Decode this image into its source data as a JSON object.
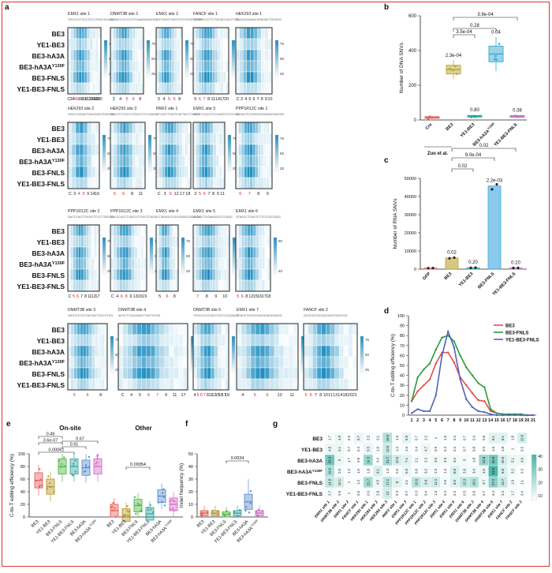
{
  "colors": {
    "heat_low": "#ffffff",
    "heat_high": "#1f8fc2",
    "frame": "#e1322e",
    "g_low": "#ffffff",
    "g_high": "#46b5a8"
  },
  "panel_labels": {
    "a": "a",
    "b": "b",
    "c": "c",
    "d": "d",
    "e": "e",
    "f": "f",
    "g": "g"
  },
  "row_labels": [
    "BE3",
    "YE1-BE3",
    "BE3-hA3A",
    "BE3-hA3A",
    "BE3-FNLS",
    "YE1-BE3-FNLS"
  ],
  "row_label_sup": "Y130F",
  "heatmaps": [
    {
      "title": "EMX1 site 1",
      "seq": "TGCCCCTCCCTCCCTGGCCCAGG",
      "ticks": [
        "C",
        "3",
        "4",
        "5",
        "6",
        "8",
        "9",
        "10",
        "11",
        "12",
        "13",
        "14",
        "18",
        "19",
        "20"
      ],
      "red": [
        "5",
        "6"
      ],
      "scale": [
        "75",
        "50",
        "25"
      ]
    },
    {
      "title": "DNMT3B site 2",
      "seq": "AGAGCCCCCCCTCAAAGAGAGGG",
      "ticks": [
        "3",
        "4",
        "5",
        "6",
        "8"
      ],
      "red": [
        "5",
        "6"
      ],
      "scale": [
        "75",
        "50",
        "25"
      ]
    },
    {
      "title": "EMX1 site 2",
      "seq": "GGTGAGTGAGTGTGTGCGTGTGG",
      "ticks": [
        "3",
        "4",
        "5",
        "6",
        "8"
      ],
      "red": [
        "5",
        "6"
      ],
      "scale": [
        "75",
        "50",
        "25"
      ]
    },
    {
      "title": "FANCF site 1",
      "seq": "GGAATCCCTTCTGCAGCACCTGG",
      "ticks": [
        "5",
        "6",
        "7",
        "8",
        "11",
        "14",
        "17",
        "20"
      ],
      "red": [
        "6",
        "7"
      ],
      "scale": [
        "75",
        "50",
        "25"
      ]
    },
    {
      "title": "HEK293 site 1",
      "seq": "GAACACAAAGCATAGACTGCGGG",
      "ticks": [
        "C",
        "2",
        "4",
        "5",
        "6",
        "7",
        "8",
        "9",
        "10"
      ],
      "red": [],
      "scale": [
        "75",
        "50",
        "25"
      ]
    },
    {
      "title": "HEK293 site 2",
      "seq": "GGCCCAGACTGAGCACGTGATGG",
      "ticks": [
        "C",
        "3",
        "4",
        "5",
        "9",
        "14",
        "16"
      ],
      "red": [
        "4",
        "5"
      ],
      "scale": [
        "75",
        "50",
        "25"
      ]
    },
    {
      "title": "HEK293 site 3",
      "seq": "GGCCTCTGCCCTGGCCTCCGAGG",
      "ticks": [
        "5",
        "6",
        "8",
        "11"
      ],
      "red": [
        "5",
        "6"
      ],
      "scale": [
        "75",
        "50",
        "25"
      ]
    },
    {
      "title": "RNF2 site 1",
      "seq": "GTCATCTTAGTCATTACCTGAGG",
      "ticks": [
        "C",
        "3",
        "6",
        "12",
        "17",
        "18"
      ],
      "red": [
        "6"
      ],
      "scale": [
        "75",
        "50",
        "25"
      ]
    },
    {
      "title": "EMX1 site 3",
      "seq": "GTCCTCACCTCCCAGCCCTCCGG",
      "ticks": [
        "3",
        "5",
        "6",
        "7",
        "8",
        "9",
        "11"
      ],
      "red": [
        "5",
        "6"
      ],
      "scale": [
        "75",
        "50",
        "25"
      ]
    },
    {
      "title": "PPP1R12C site 1",
      "seq": "GGCACTCGGGGGCGAGAGGAGGG",
      "ticks": [
        "6",
        "7",
        "8",
        "9"
      ],
      "red": [
        "6",
        "7"
      ],
      "scale": [
        "75",
        "50",
        "25"
      ]
    },
    {
      "title": "PPP1R12C site 2",
      "seq": "GACTCACCTGGCCTCCCTTAGGG",
      "ticks": [
        "C",
        "5",
        "6",
        "7",
        "8",
        "11",
        "12",
        "17"
      ],
      "red": [
        "5",
        "6"
      ],
      "scale": [
        "75",
        "50",
        "25"
      ]
    },
    {
      "title": "PPP1R12C site 3",
      "seq": "GACCCACCTGACCCTGCCTCAGG",
      "ticks": [
        "C",
        "4",
        "6",
        "8",
        "9",
        "13",
        "15",
        "19"
      ],
      "red": [
        "6",
        "8"
      ],
      "scale": [
        "75",
        "50",
        "25"
      ]
    },
    {
      "title": "EMX1 site 4",
      "seq": "CCTAGACCCGGGGAGCAGCTGG",
      "ticks": [
        "5",
        "6",
        "8"
      ],
      "red": [
        "6"
      ],
      "scale": [
        "75",
        "50",
        "25"
      ]
    },
    {
      "title": "EMX1 site 5",
      "seq": "ACGCCTGGAAGGGCCCAGG",
      "ticks": [
        "7",
        "8",
        "9",
        "10"
      ],
      "red": [
        "7"
      ],
      "scale": [
        "80",
        "40"
      ]
    },
    {
      "title": "EMX1 site 6",
      "seq": "GTAGCCTCAGTCTTCCCATCAGG",
      "ticks": [
        "5",
        "6",
        "8",
        "12",
        "15",
        "16",
        "17",
        "18"
      ],
      "red": [
        "5",
        "6"
      ],
      "scale": [
        "80",
        "40"
      ]
    },
    {
      "title": "DNMT3B site 3",
      "seq": "GAGTCCTCCTACTACTGCCCTGG",
      "ticks": [
        "5",
        "6",
        "8"
      ],
      "red": [
        "5",
        "6"
      ],
      "scale": [
        "75",
        "50",
        "25"
      ]
    },
    {
      "title": "DNMT3B site 4",
      "seq": "AGTCTCCACAGGCTGCTGTGG",
      "ticks": [
        "C",
        "4",
        "5",
        "6",
        "7",
        "9",
        "11",
        "17"
      ],
      "red": [
        "6",
        "7"
      ],
      "scale": [
        "75",
        "50",
        "25"
      ]
    },
    {
      "title": "DNMT3B site 5",
      "seq": "TGTCCCCCCATCTGCCCCAGAGG",
      "ticks": [
        "4",
        "5",
        "6",
        "7",
        "8",
        "11",
        "12",
        "15",
        "16",
        "17",
        "18"
      ],
      "red": [
        "5",
        "6",
        "7"
      ],
      "scale": [
        "75",
        "50",
        "25"
      ]
    },
    {
      "title": "EMX1 site 7",
      "seq": "TCACCTGGGCCAGGGAGGGAGG",
      "ticks": [
        "4",
        "5",
        "6",
        "10",
        "11"
      ],
      "red": [
        "5",
        "6"
      ],
      "scale": [
        "75",
        "50",
        "25"
      ]
    },
    {
      "title": "FANCF site 2",
      "seq": "GCGCCCGCCACCGGTGGCCGG",
      "ticks": [
        "5",
        "6",
        "7",
        "8",
        "10",
        "11",
        "13",
        "14",
        "18",
        "20",
        "21"
      ],
      "red": [
        "5",
        "6"
      ],
      "scale": [
        "75",
        "50",
        "25"
      ]
    },
    {
      "title": "FANCF site 3",
      "seq": "CGCCCTCCCAAGGTGAAAGCGG",
      "ticks": [
        "C",
        "3",
        "4",
        "7",
        "9",
        "10",
        "11",
        "12",
        "13"
      ],
      "red": [
        "7"
      ],
      "scale": [
        "75",
        "50",
        "25"
      ]
    }
  ],
  "chart_data": [
    {
      "panel": "b",
      "type": "box",
      "title": "",
      "xlabel": "",
      "ylabel": "Number of DNA SNVs",
      "categories": [
        "Cre",
        "BE3",
        "YE1-BE3",
        "BE3-hA3A",
        "YE1-BE3-FNLS"
      ],
      "medians": [
        15,
        290,
        22,
        380,
        22
      ],
      "ylim": [
        0,
        600
      ],
      "yticks": [
        0,
        200,
        400,
        600
      ],
      "annotations": [
        "2.3e-04",
        "0.80",
        "0.04",
        "0.38"
      ],
      "brackets": [
        "3.5e-04",
        "0.28",
        "3.9e-04"
      ],
      "footnote": "Zuo et al.",
      "sup": "Y130F"
    },
    {
      "panel": "c",
      "type": "bar",
      "ylabel": "Number of RNA SNVs",
      "categories": [
        "GFP",
        "BE3",
        "YE1-BE3",
        "BE3-FNLS",
        "YE1-BE3-FNLS"
      ],
      "values": [
        600,
        6200,
        800,
        45800,
        700
      ],
      "ylim": [
        0,
        50000
      ],
      "yticks": [
        0,
        10000,
        20000,
        30000,
        40000,
        50000
      ],
      "annotations": [
        "0.02",
        "0.20",
        "2.2e-03",
        "0.10"
      ],
      "brackets": [
        "0.02",
        "9.0e-04",
        "0.02"
      ]
    },
    {
      "panel": "d",
      "type": "line",
      "ylabel": "C-to-T editing efficiency (%)",
      "xlabel": "",
      "x": [
        1,
        2,
        3,
        4,
        5,
        6,
        7,
        8,
        9,
        10,
        11,
        12,
        13,
        14,
        15,
        16,
        17,
        18,
        19,
        20,
        21
      ],
      "ylim": [
        0,
        100
      ],
      "yticks": [
        0,
        10,
        20,
        30,
        40,
        50,
        60,
        70,
        80,
        90,
        100
      ],
      "series": [
        {
          "name": "BE3",
          "color": "#e44b4b",
          "values": [
            14,
            24,
            30,
            36,
            52,
            63,
            63,
            53,
            38,
            30,
            22,
            15,
            14,
            4,
            2,
            1,
            1,
            1,
            0,
            0,
            0
          ]
        },
        {
          "name": "BE3-FNLS",
          "color": "#2d9a3c",
          "values": [
            14,
            38,
            46,
            52,
            66,
            78,
            80,
            74,
            60,
            48,
            40,
            32,
            28,
            6,
            2,
            1,
            1,
            1,
            1,
            0,
            0
          ]
        },
        {
          "name": "YE1-BE3-FNLS",
          "color": "#4f63b8",
          "values": [
            2,
            6,
            4,
            4,
            20,
            60,
            84,
            68,
            36,
            16,
            8,
            4,
            3,
            1,
            0,
            0,
            0,
            0,
            0,
            0,
            0
          ]
        }
      ]
    },
    {
      "panel": "e",
      "type": "box",
      "ylabel": "C-to-T editing efficiency (%)",
      "groups": [
        "On-site",
        "Other"
      ],
      "categories": [
        "BE3",
        "YE1-BE3",
        "BE3-FNLS",
        "YE1-BE3-FNLS",
        "BE3-hA3A",
        "BE3-hA3A"
      ],
      "onsite_medians": [
        58,
        48,
        80,
        80,
        78,
        80
      ],
      "other_medians": [
        10,
        3,
        18,
        5,
        33,
        20
      ],
      "ylim": [
        0,
        100
      ],
      "yticks": [
        0,
        20,
        40,
        60,
        80,
        100
      ],
      "brackets": [
        "0.49",
        "3.6e-07",
        "0.67",
        "0.91",
        "0.00061",
        "0.00054"
      ],
      "colors": [
        "#e7625d",
        "#b79a30",
        "#52b847",
        "#3aa9a3",
        "#5d8fd0",
        "#d36fc4"
      ],
      "sup": "Y130F"
    },
    {
      "panel": "f",
      "type": "box",
      "ylabel": "Indel frequency (%)",
      "categories": [
        "BE3",
        "YE1-BE3",
        "BE3-FNLS",
        "YE1-BE3-FNLS",
        "BE3-hA3A",
        "BE3-hA3A"
      ],
      "medians": [
        3,
        3,
        2,
        3,
        12,
        3
      ],
      "ylim": [
        0,
        50
      ],
      "yticks": [
        0,
        10,
        20,
        30,
        40,
        50
      ],
      "brackets": [
        "0.0034"
      ],
      "sup": "Y130F"
    },
    {
      "panel": "g",
      "type": "heatmap",
      "rows": [
        "BE3",
        "YE1-BE3",
        "BE3-hA3A",
        "BE3-hA3A",
        "BE3-FNLS",
        "YE1-BE3-FNLS"
      ],
      "columns": [
        "EMX1 site 1",
        "DNMT3B site 2",
        "EMX1 site 2",
        "FANCF site 1",
        "HEK293 site 1",
        "HEK293 site 2",
        "HEK293 site 3",
        "RNF2 site 1",
        "EMX1 site 3",
        "PPP1R12C site 1",
        "PPP1R12C site 2",
        "PPP1R12C site 3",
        "EMX1 site 4",
        "EMX1 site 5",
        "EMX1 site 6",
        "DNMT3B site 3",
        "DNMT3B site 4",
        "DNMT3B site 5",
        "EMX1 site 7",
        "FANCF site 2",
        "FANCF site 3"
      ],
      "values": [
        [
          1.7,
          4.9,
          0.5,
          5.7,
          2.3,
          2.1,
          18.5,
          1.5,
          6.9,
          0.7,
          2.2,
          1.0,
          1.5,
          0.4,
          0.7,
          0.4,
          0.8,
          8.1,
          8.1,
          1.8,
          10.6
        ],
        [
          4.8,
          5.1,
          0.7,
          0.4,
          5.5,
          1.6,
          13.6,
          1.4,
          1.6,
          0.4,
          4.7,
          0.9,
          0.3,
          0.4,
          0.7,
          0.8,
          0.5,
          1.6,
          1.8,
          1.0,
          0.5
        ],
        [
          34.3,
          5.0,
          1.7,
          0.9,
          24.3,
          0.4,
          21.7,
          10.5,
          7.1,
          2.1,
          2.3,
          3.6,
          3.3,
          3.4,
          3.0,
          1.8,
          24.8,
          34.9,
          10.5,
          5.1,
          4.6
        ],
        [
          19.6,
          2.6,
          1.2,
          1.5,
          1.8,
          9.1,
          1.3,
          0.5,
          5.5,
          0.8,
          3.2,
          2.3,
          1.4,
          8.8,
          3.9,
          3.4,
          4.5,
          43.6,
          8.8,
          3.2,
          0.3
        ],
        [
          14.9,
          10.1,
          1.0,
          1.2,
          21.7,
          4.5,
          17.1,
          8.0,
          2.1,
          16.6,
          9.9,
          11.4,
          2.6,
          8.5,
          15.3,
          18.1,
          3.7,
          27.4,
          13.7,
          1.9,
          1.1
        ],
        [
          2.7,
          0.5,
          1.0,
          0.6,
          0.6,
          2.9,
          12.0,
          0.3,
          0.7,
          0.3,
          0.4,
          1.3,
          0.4,
          0.3,
          0.5,
          0.9,
          0.7,
          0.4,
          2.4,
          1.7,
          0.4
        ]
      ],
      "scale": [
        "40",
        "30",
        "20",
        "10"
      ]
    }
  ]
}
